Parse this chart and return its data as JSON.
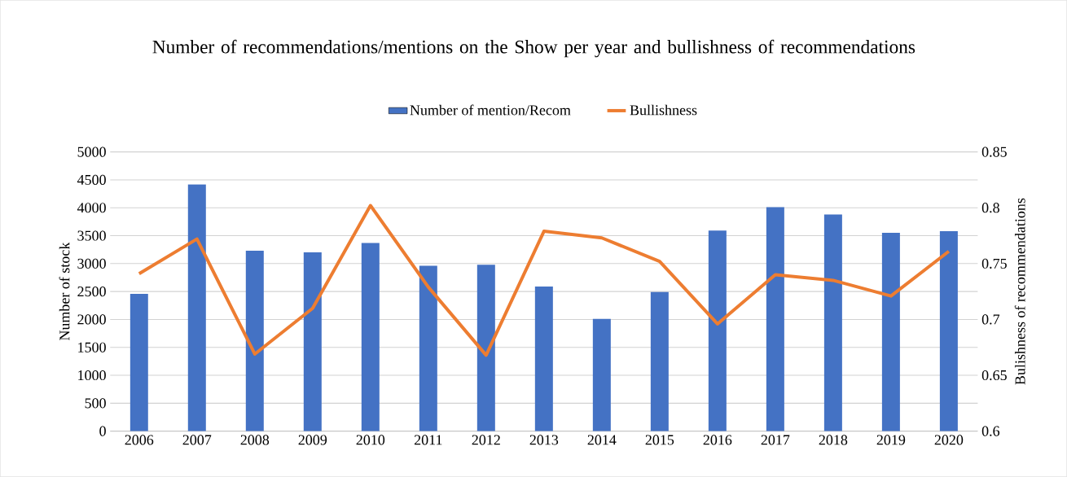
{
  "chart_data": {
    "type": "bar",
    "title": "Number of recommendations/mentions on the Show per year and bullishness of recommendations",
    "categories": [
      "2006",
      "2007",
      "2008",
      "2009",
      "2010",
      "2011",
      "2012",
      "2013",
      "2014",
      "2015",
      "2016",
      "2017",
      "2018",
      "2019",
      "2020"
    ],
    "series": [
      {
        "name": "Number of mention/Recom",
        "color": "#4472c4",
        "values": [
          2460,
          4420,
          3230,
          3200,
          3370,
          2960,
          2980,
          2590,
          2010,
          2490,
          3590,
          4010,
          3880,
          3550,
          3580
        ]
      },
      {
        "name": "Bullishness",
        "type": "line",
        "axis": "y2",
        "color": "#ed7d31",
        "values": [
          0.741,
          0.772,
          0.669,
          0.71,
          0.802,
          0.729,
          0.668,
          0.779,
          0.773,
          0.752,
          0.696,
          0.74,
          0.735,
          0.721,
          0.761
        ]
      }
    ],
    "ylabel": "Number of stock",
    "y2label": "Bulishness of recommendations",
    "ylim": [
      0,
      5000
    ],
    "yticks": [
      0,
      500,
      1000,
      1500,
      2000,
      2500,
      3000,
      3500,
      4000,
      4500,
      5000
    ],
    "y2lim": [
      0.6,
      0.85
    ],
    "y2ticks": [
      {
        "value": 0.6,
        "label": "0.6"
      },
      {
        "value": 0.65,
        "label": "0.65"
      },
      {
        "value": 0.7,
        "label": "0.7"
      },
      {
        "value": 0.75,
        "label": "0.75"
      },
      {
        "value": 0.8,
        "label": "0.8"
      },
      {
        "value": 0.85,
        "label": "0.85"
      }
    ],
    "grid": "y",
    "legend": "top"
  }
}
